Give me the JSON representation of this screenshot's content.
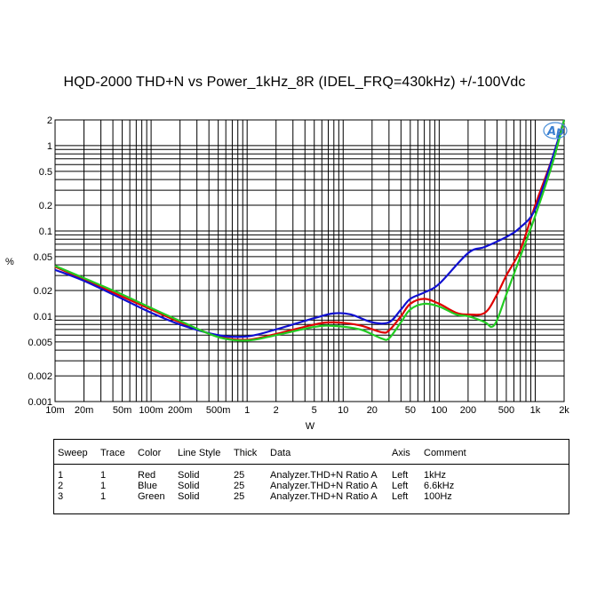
{
  "chart_data": {
    "type": "line",
    "title": "HQD-2000 THD+N vs Power_1kHz_8R (IDEL_FRQ=430kHz) +/-100Vdc",
    "xlabel": "W",
    "ylabel": "%",
    "xscale": "log",
    "yscale": "log",
    "xlim": [
      0.01,
      2000
    ],
    "ylim": [
      0.001,
      2
    ],
    "grid": true,
    "logo_text": "Ap",
    "x_ticks": [
      {
        "v": 0.01,
        "label": "10m"
      },
      {
        "v": 0.02,
        "label": "20m"
      },
      {
        "v": 0.05,
        "label": "50m"
      },
      {
        "v": 0.1,
        "label": "100m"
      },
      {
        "v": 0.2,
        "label": "200m"
      },
      {
        "v": 0.5,
        "label": "500m"
      },
      {
        "v": 1,
        "label": "1"
      },
      {
        "v": 2,
        "label": "2"
      },
      {
        "v": 5,
        "label": "5"
      },
      {
        "v": 10,
        "label": "10"
      },
      {
        "v": 20,
        "label": "20"
      },
      {
        "v": 50,
        "label": "50"
      },
      {
        "v": 100,
        "label": "100"
      },
      {
        "v": 200,
        "label": "200"
      },
      {
        "v": 500,
        "label": "500"
      },
      {
        "v": 1000,
        "label": "1k"
      },
      {
        "v": 2000,
        "label": "2k"
      }
    ],
    "y_ticks": [
      {
        "v": 2,
        "label": "2"
      },
      {
        "v": 1,
        "label": "1"
      },
      {
        "v": 0.5,
        "label": "0.5"
      },
      {
        "v": 0.2,
        "label": "0.2"
      },
      {
        "v": 0.1,
        "label": "0.1"
      },
      {
        "v": 0.05,
        "label": "0.05"
      },
      {
        "v": 0.02,
        "label": "0.02"
      },
      {
        "v": 0.01,
        "label": "0.01"
      },
      {
        "v": 0.005,
        "label": "0.005"
      },
      {
        "v": 0.002,
        "label": "0.002"
      },
      {
        "v": 0.001,
        "label": "0.001"
      }
    ],
    "series": [
      {
        "name": "1kHz",
        "color": "#e00000",
        "points": [
          [
            0.01,
            0.038
          ],
          [
            0.02,
            0.027
          ],
          [
            0.05,
            0.017
          ],
          [
            0.1,
            0.012
          ],
          [
            0.2,
            0.0085
          ],
          [
            0.5,
            0.0058
          ],
          [
            1,
            0.0053
          ],
          [
            2,
            0.0062
          ],
          [
            5,
            0.008
          ],
          [
            8,
            0.0085
          ],
          [
            15,
            0.0078
          ],
          [
            25,
            0.0065
          ],
          [
            30,
            0.0068
          ],
          [
            40,
            0.01
          ],
          [
            50,
            0.014
          ],
          [
            70,
            0.016
          ],
          [
            100,
            0.014
          ],
          [
            150,
            0.011
          ],
          [
            200,
            0.0105
          ],
          [
            300,
            0.011
          ],
          [
            400,
            0.018
          ],
          [
            500,
            0.03
          ],
          [
            700,
            0.06
          ],
          [
            1000,
            0.2
          ],
          [
            1500,
            0.7
          ],
          [
            2000,
            2.0
          ]
        ]
      },
      {
        "name": "6.6kHz",
        "color": "#1010d0",
        "points": [
          [
            0.01,
            0.035
          ],
          [
            0.02,
            0.026
          ],
          [
            0.05,
            0.016
          ],
          [
            0.1,
            0.011
          ],
          [
            0.2,
            0.008
          ],
          [
            0.5,
            0.006
          ],
          [
            1,
            0.0058
          ],
          [
            2,
            0.007
          ],
          [
            5,
            0.0095
          ],
          [
            8,
            0.0108
          ],
          [
            12,
            0.0105
          ],
          [
            20,
            0.0085
          ],
          [
            30,
            0.0085
          ],
          [
            40,
            0.012
          ],
          [
            50,
            0.016
          ],
          [
            70,
            0.019
          ],
          [
            100,
            0.024
          ],
          [
            200,
            0.055
          ],
          [
            300,
            0.065
          ],
          [
            500,
            0.085
          ],
          [
            700,
            0.11
          ],
          [
            1000,
            0.18
          ],
          [
            1500,
            0.7
          ],
          [
            2000,
            2.0
          ]
        ]
      },
      {
        "name": "100Hz",
        "color": "#22cc22",
        "points": [
          [
            0.01,
            0.039
          ],
          [
            0.02,
            0.028
          ],
          [
            0.05,
            0.018
          ],
          [
            0.1,
            0.0125
          ],
          [
            0.2,
            0.0088
          ],
          [
            0.5,
            0.0057
          ],
          [
            1,
            0.0052
          ],
          [
            2,
            0.006
          ],
          [
            5,
            0.0075
          ],
          [
            8,
            0.0077
          ],
          [
            15,
            0.007
          ],
          [
            25,
            0.0055
          ],
          [
            30,
            0.0055
          ],
          [
            40,
            0.0085
          ],
          [
            50,
            0.012
          ],
          [
            70,
            0.014
          ],
          [
            100,
            0.013
          ],
          [
            150,
            0.0105
          ],
          [
            200,
            0.01
          ],
          [
            300,
            0.0085
          ],
          [
            350,
            0.0075
          ],
          [
            400,
            0.009
          ],
          [
            500,
            0.018
          ],
          [
            700,
            0.05
          ],
          [
            1000,
            0.15
          ],
          [
            1500,
            0.6
          ],
          [
            2000,
            2.0
          ]
        ]
      }
    ]
  },
  "legend": {
    "headers": [
      "Sweep",
      "Trace",
      "Color",
      "Line Style",
      "Thick",
      "Data",
      "Axis",
      "Comment"
    ],
    "rows": [
      [
        "1",
        "1",
        "Red",
        "Solid",
        "25",
        "Analyzer.THD+N Ratio A",
        "Left",
        "1kHz"
      ],
      [
        "2",
        "1",
        "Blue",
        "Solid",
        "25",
        "Analyzer.THD+N Ratio A",
        "Left",
        "6.6kHz"
      ],
      [
        "3",
        "1",
        "Green",
        "Solid",
        "25",
        "Analyzer.THD+N Ratio A",
        "Left",
        "100Hz"
      ]
    ]
  }
}
